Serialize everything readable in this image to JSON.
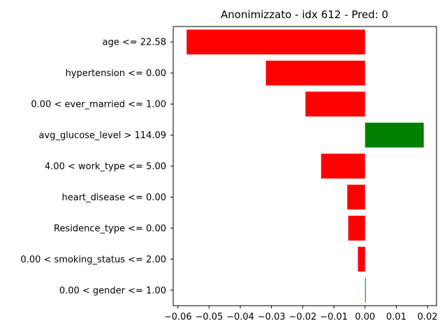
{
  "chart_data": {
    "type": "bar",
    "orientation": "horizontal",
    "title": "Anonimizzato - idx 612 - Pred: 0",
    "xlabel": "",
    "ylabel": "",
    "categories": [
      "age <= 22.58",
      "hypertension <= 0.00",
      "0.00 < ever_married <= 1.00",
      "avg_glucose_level > 114.09",
      "4.00 < work_type <= 5.00",
      "heart_disease <= 0.00",
      "Residence_type <= 0.00",
      "0.00 < smoking_status <= 2.00",
      "0.00 < gender <= 1.00"
    ],
    "values": [
      -0.0572,
      -0.0318,
      -0.0191,
      0.0188,
      -0.0141,
      -0.0057,
      -0.0054,
      -0.0023,
      0.0002
    ],
    "xlim": [
      -0.0615,
      0.0229
    ],
    "xticks": [
      -0.06,
      -0.05,
      -0.04,
      -0.03,
      -0.02,
      -0.01,
      0.0,
      0.01,
      0.02
    ],
    "xtick_labels": [
      "−0.06",
      "−0.05",
      "−0.04",
      "−0.03",
      "−0.02",
      "−0.01",
      "0.00",
      "0.01",
      "0.02"
    ],
    "negative_color": "#ff0000",
    "positive_color": "#008000",
    "grid": false,
    "legend": "none"
  }
}
